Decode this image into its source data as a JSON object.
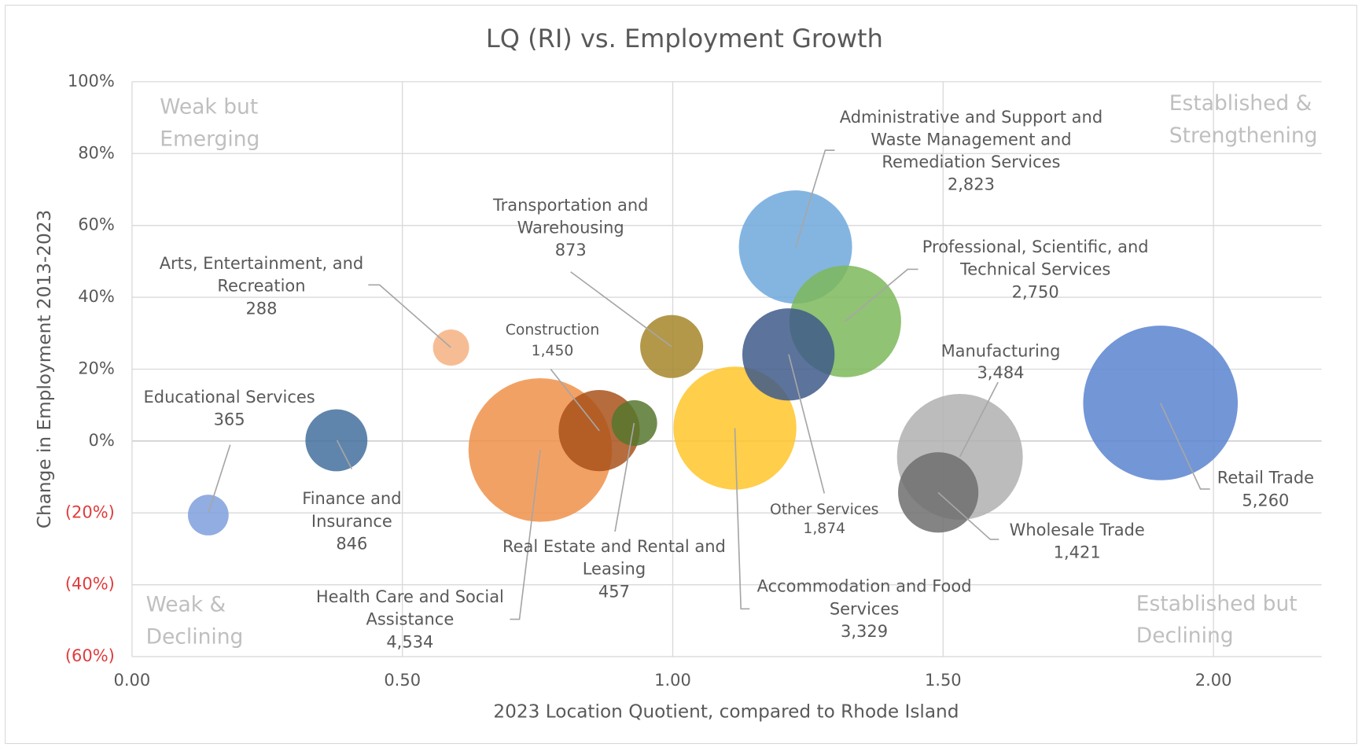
{
  "chart_data": {
    "type": "bubble",
    "title": "LQ (RI) vs. Employment Growth",
    "x_label": "2023 Location Quotient, compared to Rhode Island",
    "y_label": "Change in Employment 2013-2023",
    "xlim": [
      0,
      2.2
    ],
    "ylim": [
      -60,
      100
    ],
    "xticks": [
      {
        "value": 0,
        "label": "0.00"
      },
      {
        "value": 0.5,
        "label": "0.50"
      },
      {
        "value": 1,
        "label": "1.00"
      },
      {
        "value": 1.5,
        "label": "1.50"
      },
      {
        "value": 2,
        "label": "2.00"
      }
    ],
    "yticks": [
      {
        "value": -60,
        "label": "(60%)"
      },
      {
        "value": -40,
        "label": "(40%)"
      },
      {
        "value": -20,
        "label": "(20%)"
      },
      {
        "value": 0,
        "label": "0%"
      },
      {
        "value": 20,
        "label": "20%"
      },
      {
        "value": 40,
        "label": "40%"
      },
      {
        "value": 60,
        "label": "60%"
      },
      {
        "value": 80,
        "label": "80%"
      },
      {
        "value": 100,
        "label": "100%"
      }
    ],
    "grid": true,
    "negative_tick_color": "#e03c3c",
    "annotations": [
      [
        "Weak but",
        "Emerging"
      ],
      [
        "Established &",
        "Strengthening"
      ],
      [
        "Weak &",
        "Declining"
      ],
      [
        "Established but",
        "Declining"
      ]
    ],
    "series": [
      {
        "name": [
          "Educational Services"
        ],
        "color": "#7f9fdc",
        "x": 0.141,
        "y": -20.6,
        "size": 365,
        "size_label": "365"
      },
      {
        "name": [
          "Finance and",
          "Insurance"
        ],
        "color": "#44709d",
        "x": 0.378,
        "y": 0.2,
        "size": 846,
        "size_label": "846"
      },
      {
        "name": [
          "Arts, Entertainment, and",
          "Recreation"
        ],
        "color": "#f4b183",
        "x": 0.59,
        "y": 26,
        "size": 288,
        "size_label": "288"
      },
      {
        "name": [
          "Health Care and Social",
          "Assistance"
        ],
        "color": "#f0914a",
        "x": 0.755,
        "y": -2.5,
        "size": 4534,
        "size_label": "4,534"
      },
      {
        "name": [
          "Construction"
        ],
        "color": "#a9521b",
        "x": 0.864,
        "y": 2.9,
        "size": 1450,
        "size_label": "1,450"
      },
      {
        "name": [
          "Real Estate and Rental and",
          "Leasing"
        ],
        "color": "#56772e",
        "x": 0.929,
        "y": 5,
        "size": 457,
        "size_label": "457"
      },
      {
        "name": [
          "Transportation and",
          "Warehousing"
        ],
        "color": "#a6862a",
        "x": 0.998,
        "y": 26.3,
        "size": 873,
        "size_label": "873"
      },
      {
        "name": [
          "Accommodation and Food",
          "Services"
        ],
        "color": "#ffc62a",
        "x": 1.115,
        "y": 3.6,
        "size": 3329,
        "size_label": "3,329"
      },
      {
        "name": [
          "Administrative and Support and",
          "Waste Management and",
          "Remediation Services"
        ],
        "color": "#6fa8dc",
        "x": 1.227,
        "y": 54,
        "size": 2823,
        "size_label": "2,823"
      },
      {
        "name": [
          "Professional, Scientific, and",
          "Technical Services"
        ],
        "color": "#7db85a",
        "x": 1.319,
        "y": 33.3,
        "size": 2750,
        "size_label": "2,750"
      },
      {
        "name": [
          "Other Services"
        ],
        "color": "#3f5a8a",
        "x": 1.214,
        "y": 24.1,
        "size": 1874,
        "size_label": "1,874"
      },
      {
        "name": [
          "Manufacturing"
        ],
        "color": "#b0b0b0",
        "x": 1.531,
        "y": -4.4,
        "size": 3484,
        "size_label": "3,484"
      },
      {
        "name": [
          "Wholesale Trade"
        ],
        "color": "#6e6e6e",
        "x": 1.491,
        "y": -14.3,
        "size": 1421,
        "size_label": "1,421"
      },
      {
        "name": [
          "Retail Trade"
        ],
        "color": "#5b84cf",
        "x": 1.902,
        "y": 10.6,
        "size": 5260,
        "size_label": "5,260"
      }
    ]
  }
}
